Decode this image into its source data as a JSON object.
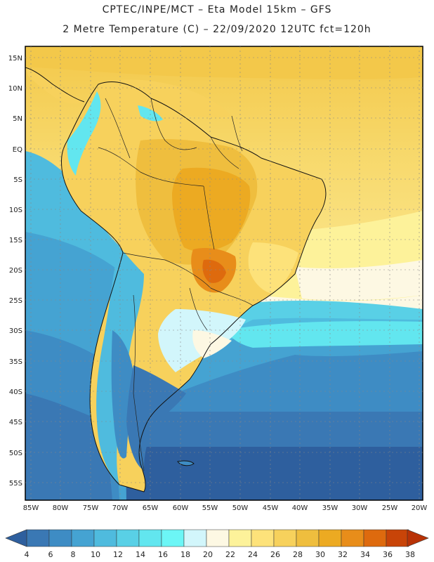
{
  "header": {
    "line1": "CPTEC/INPE/MCT –  Eta Model 15km – GFS",
    "line2": "2 Metre Temperature (C) – 22/09/2020 12UTC fct=120h"
  },
  "map": {
    "region": "South America",
    "field": "2 Metre Temperature",
    "units": "C",
    "lat_labels": [
      "15N",
      "10N",
      "5N",
      "EQ",
      "5S",
      "10S",
      "15S",
      "20S",
      "25S",
      "30S",
      "35S",
      "40S",
      "45S",
      "50S",
      "55S"
    ],
    "lon_labels": [
      "85W",
      "80W",
      "75W",
      "70W",
      "65W",
      "60W",
      "55W",
      "50W",
      "45W",
      "40W",
      "35W",
      "30W",
      "25W",
      "20W"
    ]
  },
  "colorbar": {
    "labels": [
      "4",
      "6",
      "8",
      "10",
      "12",
      "14",
      "16",
      "18",
      "20",
      "22",
      "24",
      "26",
      "28",
      "30",
      "32",
      "34",
      "36",
      "38"
    ],
    "colors": [
      "#2e5f9e",
      "#3a78b4",
      "#3e8cc4",
      "#45a3d2",
      "#4fbbde",
      "#59d0e6",
      "#62e6ef",
      "#6cf6f6",
      "#d2f6fb",
      "#fdf8e3",
      "#fdf29a",
      "#fde27a",
      "#f7d15c",
      "#efbe3e",
      "#ecaa22",
      "#e88d1a",
      "#de6a0e",
      "#c84408",
      "#b83206"
    ]
  }
}
